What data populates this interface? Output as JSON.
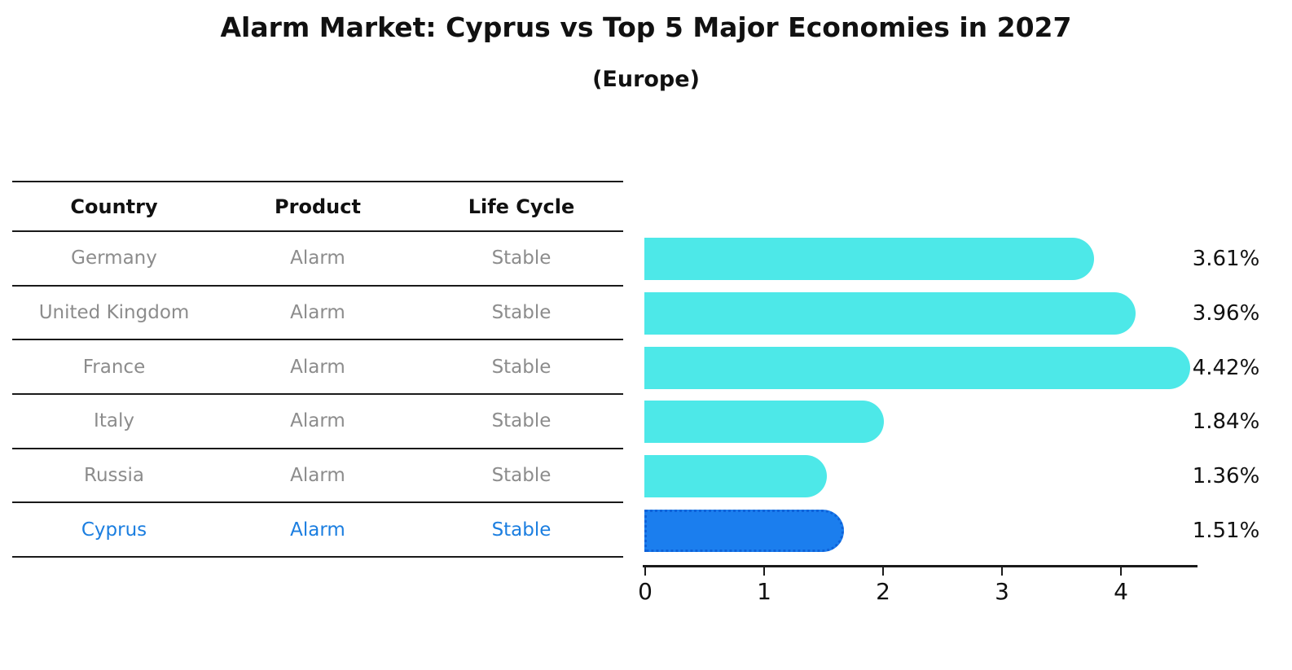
{
  "title": "Alarm Market: Cyprus vs Top 5 Major Economies in 2027",
  "subtitle": "(Europe)",
  "table": {
    "headers": [
      "Country",
      "Product",
      "Life Cycle"
    ],
    "rows": [
      {
        "country": "Germany",
        "product": "Alarm",
        "life_cycle": "Stable",
        "highlighted": false
      },
      {
        "country": "United Kingdom",
        "product": "Alarm",
        "life_cycle": "Stable",
        "highlighted": false
      },
      {
        "country": "France",
        "product": "Alarm",
        "life_cycle": "Stable",
        "highlighted": false
      },
      {
        "country": "Italy",
        "product": "Alarm",
        "life_cycle": "Stable",
        "highlighted": false
      },
      {
        "country": "Russia",
        "product": "Alarm",
        "life_cycle": "Stable",
        "highlighted": false
      },
      {
        "country": "Cyprus",
        "product": "Alarm",
        "life_cycle": "Stable",
        "highlighted": true
      }
    ]
  },
  "chart_data": {
    "type": "bar",
    "orientation": "horizontal",
    "title": "Alarm Market: Cyprus vs Top 5 Major Economies in 2027",
    "subtitle": "(Europe)",
    "categories": [
      "Germany",
      "United Kingdom",
      "France",
      "Italy",
      "Russia",
      "Cyprus"
    ],
    "values": [
      3.61,
      3.96,
      4.42,
      1.84,
      1.36,
      1.51
    ],
    "value_labels": [
      "3.61%",
      "3.96%",
      "4.42%",
      "1.84%",
      "1.36%",
      "1.51%"
    ],
    "unit": "%",
    "x_ticks": [
      0,
      1,
      2,
      3,
      4
    ],
    "xlim": [
      0,
      4.65
    ],
    "grid": false,
    "legend": false,
    "highlight_index": 5,
    "bar_color": "#4de8e8",
    "highlight_bar_color": "#1b7eee",
    "highlight_border_color": "#0e62d9",
    "highlight_text_color": "#1b7ee0",
    "muted_text_color": "#8c8c8c"
  }
}
